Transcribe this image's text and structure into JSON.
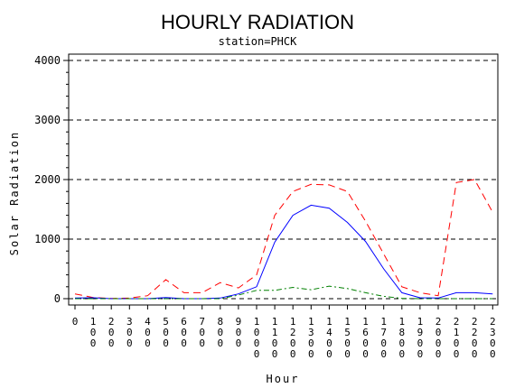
{
  "chart_data": {
    "type": "line",
    "title": "HOURLY RADIATION",
    "subtitle": "station=PHCK",
    "xlabel": "Hour",
    "ylabel": "Solar Radiation",
    "ylim": [
      0,
      4000
    ],
    "yticks": [
      0,
      1000,
      2000,
      3000,
      4000
    ],
    "ytick_labels": [
      "0",
      "1000",
      "2000",
      "3000",
      "4000"
    ],
    "grid": "horizontal-dashed",
    "categories": [
      "0",
      "100",
      "200",
      "300",
      "400",
      "500",
      "600",
      "700",
      "800",
      "900",
      "1000",
      "1100",
      "1200",
      "1300",
      "1400",
      "1500",
      "1600",
      "1700",
      "1800",
      "1900",
      "2000",
      "2100",
      "2200",
      "2300"
    ],
    "series": [
      {
        "color": "#ff0000",
        "dash": "dashed",
        "values": [
          80,
          20,
          5,
          10,
          50,
          320,
          100,
          100,
          270,
          180,
          400,
          1400,
          1800,
          1920,
          1910,
          1800,
          1300,
          750,
          200,
          100,
          50,
          1950,
          2000,
          1450
        ]
      },
      {
        "color": "#0000ff",
        "dash": "solid",
        "values": [
          10,
          15,
          0,
          0,
          0,
          20,
          0,
          0,
          10,
          80,
          200,
          950,
          1400,
          1570,
          1520,
          1280,
          960,
          500,
          100,
          15,
          10,
          100,
          100,
          80
        ]
      },
      {
        "color": "#008000",
        "dash": "dashdot",
        "values": [
          0,
          0,
          0,
          0,
          0,
          0,
          0,
          0,
          0,
          60,
          140,
          140,
          190,
          150,
          210,
          170,
          100,
          40,
          5,
          0,
          0,
          0,
          0,
          0
        ]
      }
    ]
  }
}
